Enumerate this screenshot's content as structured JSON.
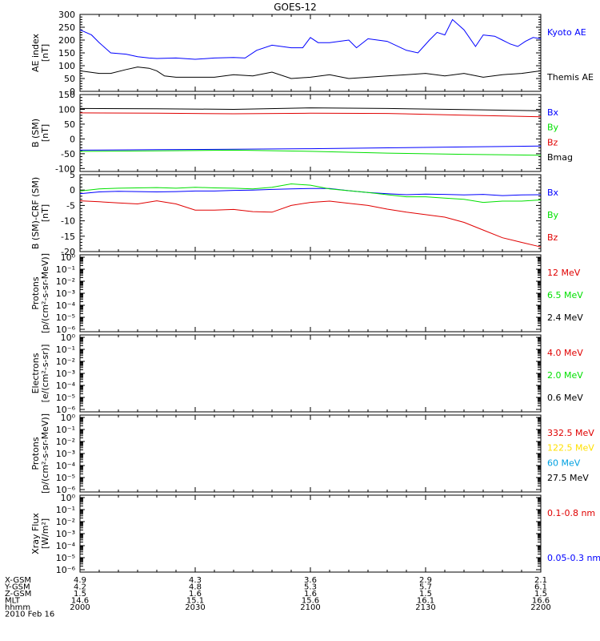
{
  "title": "GOES-12",
  "colors": {
    "black": "#000000",
    "blue": "#0000ff",
    "green": "#00e000",
    "red": "#e00000",
    "yellow": "#ffe000",
    "cyan": "#00a0e0"
  },
  "chart_data": [
    {
      "type": "line",
      "ylabel": [
        "AE index",
        "[nT]"
      ],
      "ylim": [
        0,
        300
      ],
      "yticks": [
        "0",
        "50",
        "100",
        "150",
        "200",
        "250",
        "300"
      ],
      "ytick_values": [
        0,
        50,
        100,
        150,
        200,
        250,
        300
      ],
      "series": [
        {
          "name": "Kyoto AE",
          "color": "#0000ff",
          "x": [
            0,
            3,
            5,
            8,
            12,
            15,
            18,
            20,
            25,
            30,
            35,
            40,
            43,
            46,
            50,
            55,
            58,
            60,
            62,
            65,
            70,
            72,
            75,
            80,
            85,
            88,
            91,
            93,
            95,
            97,
            100,
            103,
            105,
            108,
            110,
            112,
            114,
            116,
            118,
            120
          ],
          "y": [
            240,
            220,
            190,
            150,
            145,
            135,
            130,
            128,
            130,
            125,
            130,
            132,
            130,
            160,
            180,
            170,
            170,
            210,
            190,
            190,
            200,
            170,
            205,
            195,
            160,
            150,
            200,
            230,
            220,
            280,
            240,
            175,
            220,
            215,
            200,
            185,
            175,
            195,
            210,
            205
          ]
        },
        {
          "name": "Themis AE",
          "color": "#000000",
          "x": [
            0,
            5,
            8,
            12,
            15,
            18,
            20,
            22,
            25,
            30,
            35,
            40,
            45,
            50,
            55,
            60,
            65,
            70,
            75,
            80,
            85,
            90,
            95,
            100,
            105,
            110,
            115,
            120
          ],
          "y": [
            80,
            70,
            70,
            85,
            95,
            90,
            80,
            60,
            55,
            55,
            55,
            65,
            60,
            75,
            50,
            55,
            65,
            50,
            55,
            60,
            65,
            70,
            60,
            70,
            55,
            65,
            70,
            80
          ]
        }
      ]
    },
    {
      "type": "line",
      "ylabel": [
        "B (SM)",
        "[nT]"
      ],
      "ylim": [
        -110,
        150
      ],
      "yticks": [
        "-100",
        "-50",
        "0",
        "50",
        "100",
        "150"
      ],
      "ytick_values": [
        -100,
        -50,
        0,
        50,
        100,
        150
      ],
      "series": [
        {
          "name": "Bx",
          "color": "#0000ff",
          "x": [
            0,
            20,
            40,
            60,
            80,
            100,
            120
          ],
          "y": [
            -38,
            -36,
            -35,
            -33,
            -30,
            -27,
            -24
          ]
        },
        {
          "name": "By",
          "color": "#00e000",
          "x": [
            0,
            20,
            40,
            60,
            80,
            100,
            120
          ],
          "y": [
            -42,
            -40,
            -38,
            -42,
            -48,
            -52,
            -55
          ]
        },
        {
          "name": "Bz",
          "color": "#e00000",
          "x": [
            0,
            20,
            40,
            60,
            80,
            100,
            120
          ],
          "y": [
            88,
            87,
            85,
            87,
            86,
            80,
            75
          ]
        },
        {
          "name": "Bmag",
          "color": "#000000",
          "x": [
            0,
            20,
            40,
            60,
            80,
            100,
            120
          ],
          "y": [
            103,
            102,
            100,
            105,
            103,
            99,
            95
          ]
        }
      ]
    },
    {
      "type": "line",
      "ylabel": [
        "B (SM)-CRF (SM)",
        "[nT]"
      ],
      "ylim": [
        -20,
        5
      ],
      "yticks": [
        "-20",
        "-15",
        "-10",
        "-5",
        "0",
        "5"
      ],
      "ytick_values": [
        -20,
        -15,
        -10,
        -5,
        0,
        5
      ],
      "series": [
        {
          "name": "Bx",
          "color": "#0000ff",
          "x": [
            0,
            5,
            10,
            15,
            20,
            25,
            30,
            35,
            40,
            45,
            50,
            55,
            60,
            65,
            70,
            75,
            80,
            85,
            90,
            95,
            100,
            105,
            110,
            115,
            120
          ],
          "y": [
            -1.2,
            -0.6,
            -0.4,
            -0.5,
            -0.6,
            -0.5,
            -0.3,
            -0.3,
            -0.1,
            0,
            0.2,
            0.4,
            0.5,
            0.5,
            -0.2,
            -0.8,
            -1.2,
            -1.5,
            -1.3,
            -1.4,
            -1.6,
            -1.4,
            -1.8,
            -1.6,
            -1.5
          ]
        },
        {
          "name": "By",
          "color": "#00e000",
          "x": [
            0,
            5,
            10,
            15,
            20,
            25,
            30,
            35,
            40,
            45,
            50,
            55,
            60,
            65,
            70,
            75,
            80,
            85,
            90,
            95,
            100,
            105,
            110,
            115,
            120
          ],
          "y": [
            -0.3,
            0.4,
            0.6,
            0.7,
            0.8,
            0.6,
            0.9,
            0.7,
            0.6,
            0.4,
            0.9,
            2,
            1.6,
            0.4,
            -0.2,
            -0.8,
            -1.5,
            -2.2,
            -2.2,
            -2.6,
            -3,
            -4,
            -3.6,
            -3.6,
            -3.2
          ]
        },
        {
          "name": "Bz",
          "color": "#e00000",
          "x": [
            0,
            5,
            10,
            15,
            20,
            25,
            30,
            35,
            40,
            45,
            50,
            55,
            60,
            65,
            70,
            75,
            80,
            85,
            90,
            95,
            100,
            105,
            110,
            115,
            120
          ],
          "y": [
            -3.5,
            -3.8,
            -4.2,
            -4.5,
            -3.5,
            -4.5,
            -6.5,
            -6.5,
            -6.3,
            -7,
            -7.2,
            -5,
            -4,
            -3.6,
            -4.3,
            -5,
            -6.2,
            -7.2,
            -8,
            -8.8,
            -10.5,
            -13,
            -15.5,
            -17,
            -18.5
          ]
        }
      ]
    },
    {
      "type": "line",
      "log": true,
      "ylabel": [
        "Protons",
        "[p/(cm²-s-sr-MeV)]"
      ],
      "ylim": [
        1e-06,
        1
      ],
      "yticks": [
        "10⁰",
        "10⁻¹",
        "10⁻²",
        "10⁻³",
        "10⁻⁴",
        "10⁻⁵",
        "10⁻⁶"
      ],
      "ytick_values": [
        0,
        -1,
        -2,
        -3,
        -4,
        -5,
        -6
      ],
      "legend": [
        {
          "name": "12 MeV",
          "color": "#e00000"
        },
        {
          "name": "6.5 MeV",
          "color": "#00e000"
        },
        {
          "name": "2.4 MeV",
          "color": "#000000"
        }
      ]
    },
    {
      "type": "line",
      "log": true,
      "ylabel": [
        "Electrons",
        "[e/(cm²-s-sr)]"
      ],
      "ylim": [
        1e-06,
        1
      ],
      "yticks": [
        "10⁰",
        "10⁻¹",
        "10⁻²",
        "10⁻³",
        "10⁻⁴",
        "10⁻⁵",
        "10⁻⁶"
      ],
      "ytick_values": [
        0,
        -1,
        -2,
        -3,
        -4,
        -5,
        -6
      ],
      "legend": [
        {
          "name": "4.0 MeV",
          "color": "#e00000"
        },
        {
          "name": "2.0 MeV",
          "color": "#00e000"
        },
        {
          "name": "0.6 MeV",
          "color": "#000000"
        }
      ]
    },
    {
      "type": "line",
      "log": true,
      "ylabel": [
        "Protons",
        "[p/(cm²-s-sr-MeV)]"
      ],
      "ylim": [
        1e-06,
        1
      ],
      "yticks": [
        "10⁰",
        "10⁻¹",
        "10⁻²",
        "10⁻³",
        "10⁻⁴",
        "10⁻⁵",
        "10⁻⁶"
      ],
      "ytick_values": [
        0,
        -1,
        -2,
        -3,
        -4,
        -5,
        -6
      ],
      "legend": [
        {
          "name": "332.5 MeV",
          "color": "#e00000"
        },
        {
          "name": "122.5 MeV",
          "color": "#ffe000"
        },
        {
          "name": "60 MeV",
          "color": "#00a0e0"
        },
        {
          "name": "27.5 MeV",
          "color": "#000000"
        }
      ]
    },
    {
      "type": "line",
      "log": true,
      "ylabel": [
        "Xray Flux",
        "[W/m²]"
      ],
      "ylim": [
        1e-06,
        1
      ],
      "yticks": [
        "10⁰",
        "10⁻¹",
        "10⁻²",
        "10⁻³",
        "10⁻⁴",
        "10⁻⁵",
        "10⁻⁶"
      ],
      "ytick_values": [
        0,
        -1,
        -2,
        -3,
        -4,
        -5,
        -6
      ],
      "legend": [
        {
          "name": "0.1-0.8 nm",
          "color": "#e00000"
        },
        {
          "name": "0.05-0.3 nm",
          "color": "#0000ff"
        }
      ]
    }
  ],
  "xaxis": {
    "xlim": [
      0,
      120
    ],
    "tick_positions": [
      0,
      30,
      60,
      90,
      120
    ],
    "rows": [
      {
        "label": "X-GSM",
        "values": [
          "4.9",
          "4.3",
          "3.6",
          "2.9",
          "2.1"
        ]
      },
      {
        "label": "Y-GSM",
        "values": [
          "4.2",
          "4.8",
          "5.3",
          "5.7",
          "6.1"
        ]
      },
      {
        "label": "Z-GSM",
        "values": [
          "1.5",
          "1.6",
          "1.6",
          "1.5",
          "1.5"
        ]
      },
      {
        "label": "MLT",
        "values": [
          "14.6",
          "15.1",
          "15.6",
          "16.1",
          "16.6"
        ]
      },
      {
        "label": "hhmm",
        "values": [
          "2000",
          "2030",
          "2100",
          "2130",
          "2200"
        ]
      }
    ],
    "date": "2010 Feb 16"
  }
}
